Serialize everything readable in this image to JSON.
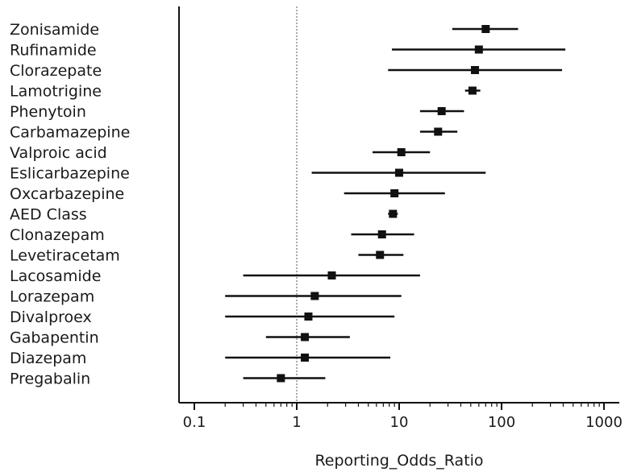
{
  "chart_data": {
    "type": "scatter",
    "title": "",
    "xlabel": "Reporting_Odds_Ratio",
    "ylabel": "",
    "x_scale": "log",
    "xlim": [
      0.1,
      1000
    ],
    "x_ticks": [
      {
        "value": 0.1,
        "label": "0.1"
      },
      {
        "value": 1,
        "label": "1"
      },
      {
        "value": 10,
        "label": "10"
      },
      {
        "value": 100,
        "label": "100"
      },
      {
        "value": 1000,
        "label": "1000"
      }
    ],
    "reference_line": 1,
    "grid": false,
    "marker_color": "#111111",
    "reference_line_color": "#555555",
    "rows": [
      {
        "label": "Zonisamide",
        "or": 70,
        "lo": 33,
        "hi": 145
      },
      {
        "label": "Rufinamide",
        "or": 60,
        "lo": 8.5,
        "hi": 420
      },
      {
        "label": "Clorazepate",
        "or": 55,
        "lo": 7.8,
        "hi": 390
      },
      {
        "label": "Lamotrigine",
        "or": 52,
        "lo": 44,
        "hi": 62
      },
      {
        "label": "Phenytoin",
        "or": 26,
        "lo": 16,
        "hi": 43
      },
      {
        "label": "Carbamazepine",
        "or": 24,
        "lo": 16,
        "hi": 37
      },
      {
        "label": "Valproic acid",
        "or": 10.5,
        "lo": 5.5,
        "hi": 20
      },
      {
        "label": "Eslicarbazepine",
        "or": 10,
        "lo": 1.4,
        "hi": 70
      },
      {
        "label": "Oxcarbazepine",
        "or": 9,
        "lo": 2.9,
        "hi": 28
      },
      {
        "label": "AED Class",
        "or": 8.7,
        "lo": 7.8,
        "hi": 9.7
      },
      {
        "label": "Clonazepam",
        "or": 6.8,
        "lo": 3.4,
        "hi": 14
      },
      {
        "label": "Levetiracetam",
        "or": 6.5,
        "lo": 4,
        "hi": 11
      },
      {
        "label": "Lacosamide",
        "or": 2.2,
        "lo": 0.3,
        "hi": 16
      },
      {
        "label": "Lorazepam",
        "or": 1.5,
        "lo": 0.2,
        "hi": 10.5
      },
      {
        "label": "Divalproex",
        "or": 1.3,
        "lo": 0.2,
        "hi": 9
      },
      {
        "label": "Gabapentin",
        "or": 1.2,
        "lo": 0.5,
        "hi": 3.3
      },
      {
        "label": "Diazepam",
        "or": 1.2,
        "lo": 0.2,
        "hi": 8.2
      },
      {
        "label": "Pregabalin",
        "or": 0.7,
        "lo": 0.3,
        "hi": 1.9
      }
    ]
  }
}
